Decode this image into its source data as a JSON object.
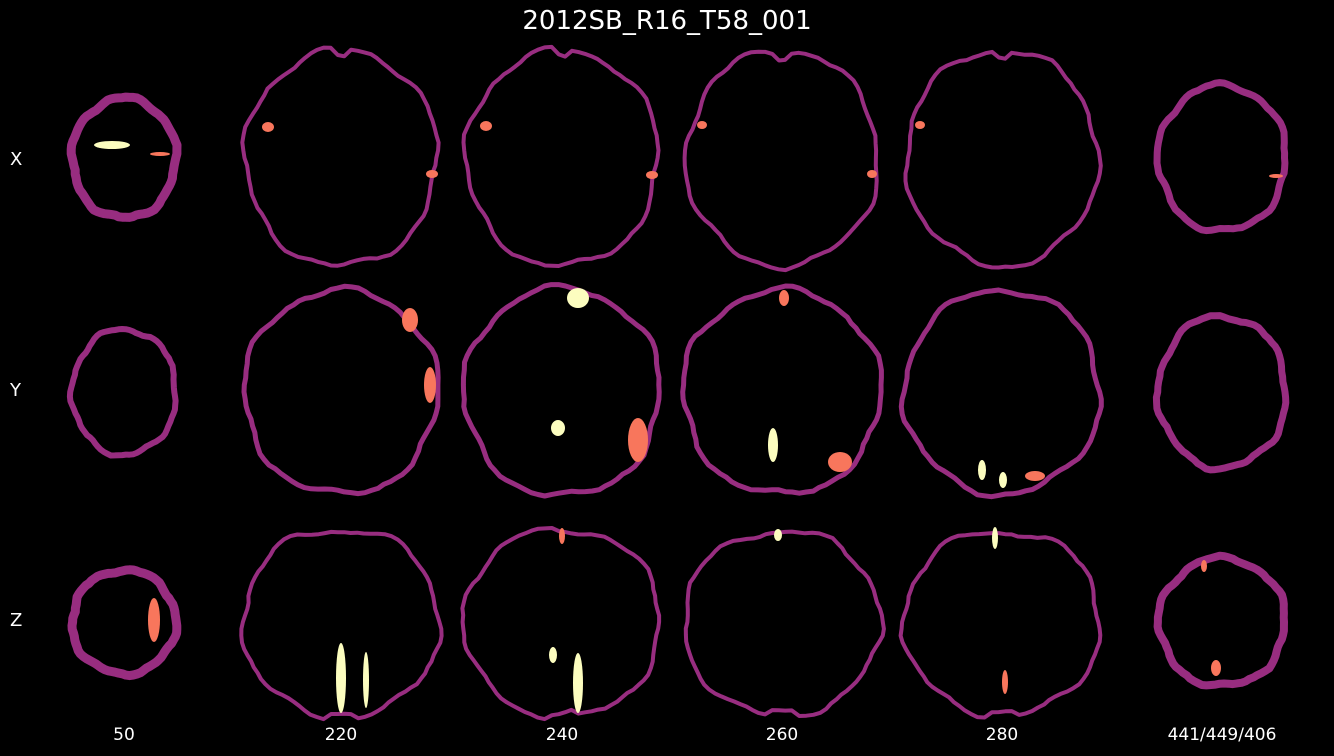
{
  "title": "2012SB_R16_T58_001",
  "row_labels": [
    "X",
    "Y",
    "Z"
  ],
  "column_labels": [
    "50",
    "220",
    "240",
    "260",
    "280",
    "441/449/406"
  ],
  "colors": {
    "background": "#000000",
    "outline": "#982d80",
    "region_orange": "#f8765c",
    "region_cream": "#fcfdbf"
  }
}
